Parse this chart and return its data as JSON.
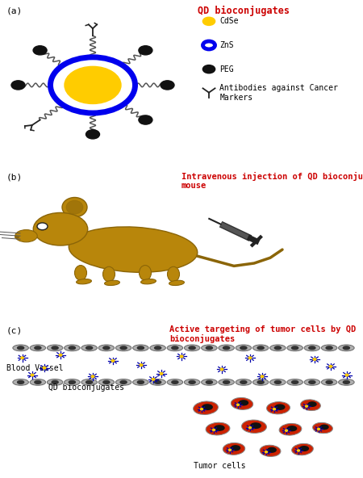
{
  "title_a": "QD bioconjugates",
  "title_b": "Intravenous injection of QD bioconjugates into\nmouse",
  "title_c": "Active targeting of tumor cells by QD\nbioconjugates",
  "label_a": "(a)",
  "label_b": "(b)",
  "label_c": "(c)",
  "title_color": "#cc0000",
  "label_color": "#000000",
  "bg_color": "#ffffff",
  "cdse_color": "#ffcc00",
  "zns_color": "#0000ee",
  "peg_color": "#111111",
  "mouse_body_color": "#b8860b",
  "mouse_dark": "#8B6508",
  "blood_vessel_gray": "#aaaaaa",
  "blood_vessel_dark": "#555555",
  "tumor_color": "#cc2200",
  "tumor_dark": "#111111",
  "qd_spoke_color": "#0000aa",
  "qd_yellow": "#ffcc00"
}
